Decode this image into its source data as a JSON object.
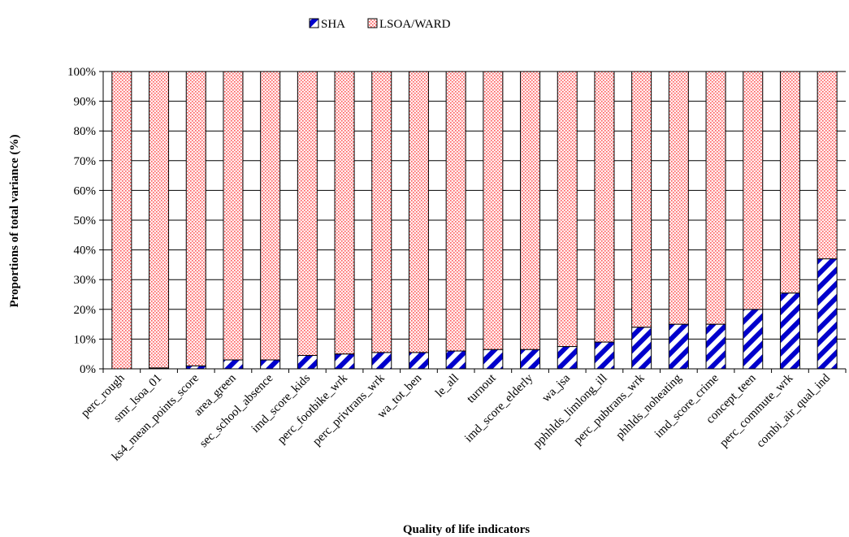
{
  "chart_data": {
    "type": "bar",
    "stacked": true,
    "percent_stacked": true,
    "title": "",
    "xlabel": "Quality of life indicators",
    "ylabel": "Proportions of total variance (%)",
    "ylim": [
      0,
      100
    ],
    "y_ticks": [
      "0%",
      "10%",
      "20%",
      "30%",
      "40%",
      "50%",
      "60%",
      "70%",
      "80%",
      "90%",
      "100%"
    ],
    "grid": true,
    "legend_position": "top-center",
    "categories": [
      "perc_rough",
      "smr_lsoa_01",
      "ks4_mean_points_score",
      "area_green",
      "sec_school_absence",
      "imd_score_kids",
      "perc_footbike_wrk",
      "perc_privtrans_wrk",
      "wa_tot_ben",
      "le_all",
      "turnout",
      "imd_score_elderly",
      "wa_jsa",
      "pphhlds_limlong_ill",
      "perc_pubtrans_wrk",
      "phhlds_noheating",
      "imd_score_crime",
      "concept_teen",
      "perc_commute_wrk",
      "combi_air_qual_ind"
    ],
    "series": [
      {
        "name": "SHA",
        "pattern": "diagonal-stripes",
        "color": "#0000cc",
        "values": [
          0,
          0.3,
          1,
          3,
          3,
          4.5,
          5,
          5.5,
          5.5,
          6,
          6.5,
          6.5,
          7.5,
          9,
          14,
          15,
          15,
          20,
          25.5,
          37
        ]
      },
      {
        "name": "LSOA/WARD",
        "pattern": "dots",
        "color": "#ff5a5a",
        "values": [
          100,
          99.7,
          99,
          97,
          97,
          95.5,
          95,
          94.5,
          94.5,
          94,
          93.5,
          93.5,
          92.5,
          91,
          86,
          85,
          85,
          80,
          74.5,
          63
        ]
      }
    ]
  }
}
